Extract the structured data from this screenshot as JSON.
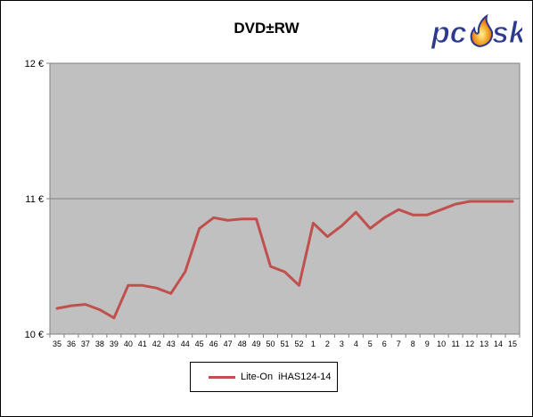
{
  "chart_data": {
    "type": "line",
    "title": "DVD±RW",
    "xlabel": "",
    "ylabel": "",
    "x": [
      "35",
      "36",
      "37",
      "38",
      "39",
      "40",
      "41",
      "42",
      "43",
      "44",
      "45",
      "46",
      "47",
      "48",
      "49",
      "50",
      "51",
      "52",
      "1",
      "2",
      "3",
      "4",
      "5",
      "6",
      "7",
      "8",
      "9",
      "10",
      "11",
      "12",
      "13",
      "14",
      "15"
    ],
    "series": [
      {
        "name": "Lite-On  iHAS124-14",
        "color": "#c0504d",
        "values": [
          10.19,
          10.21,
          10.22,
          10.18,
          10.12,
          10.36,
          10.36,
          10.34,
          10.3,
          10.46,
          10.78,
          10.86,
          10.84,
          10.85,
          10.85,
          10.5,
          10.46,
          10.36,
          10.82,
          10.72,
          10.8,
          10.9,
          10.78,
          10.86,
          10.92,
          10.88,
          10.88,
          10.92,
          10.96,
          10.98,
          10.98,
          10.98,
          10.98
        ]
      }
    ],
    "ylim": [
      10,
      12
    ],
    "yticks": [
      10,
      11,
      12
    ],
    "ytick_labels": [
      "10 €",
      "11 €",
      "12 €"
    ],
    "grid": "horizontal",
    "legend_position": "bottom",
    "plot_background": "#c0c0c0"
  },
  "logo": {
    "text": "pcsk",
    "color_primary": "#2b3a8f",
    "color_flame": "#f28c1b"
  }
}
